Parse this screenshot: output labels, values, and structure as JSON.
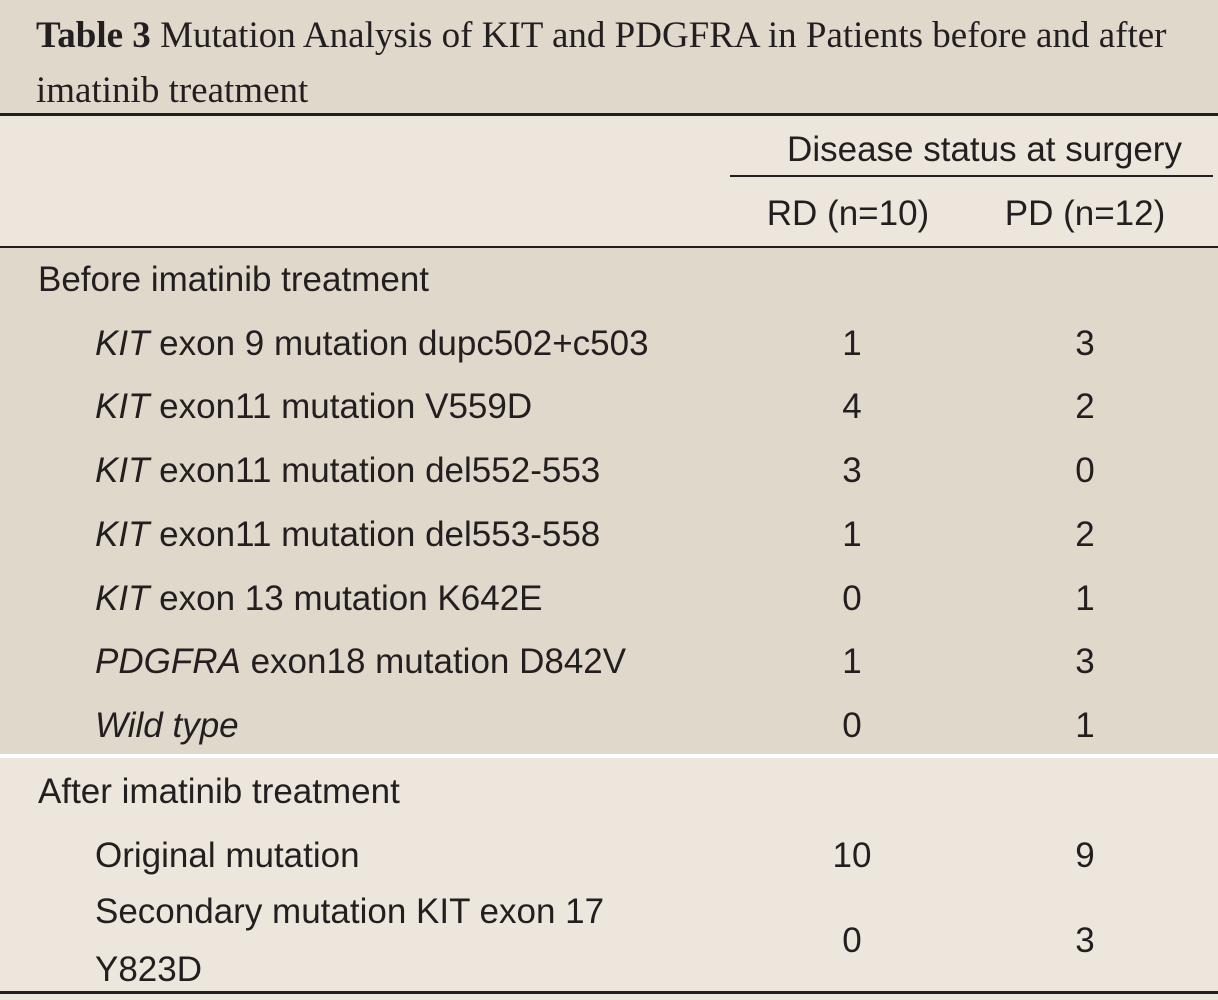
{
  "title": {
    "number": "Table 3",
    "text": "Mutation Analysis of KIT and PDGFRA in Patients before and after imatinib treatment"
  },
  "header": {
    "group": "Disease status at surgery",
    "col_rd": "RD (n=10)",
    "col_pd": "PD (n=12)"
  },
  "before": {
    "label": "Before imatinib treatment",
    "rows": [
      {
        "gene": "KIT",
        "rest": " exon 9 mutation dupc502+c503",
        "rd": "1",
        "pd": "3"
      },
      {
        "gene": "KIT",
        "rest": " exon11 mutation V559D",
        "rd": "4",
        "pd": "2"
      },
      {
        "gene": "KIT",
        "rest": " exon11 mutation del552-553",
        "rd": "3",
        "pd": "0"
      },
      {
        "gene": "KIT",
        "rest": " exon11 mutation del553-558",
        "rd": "1",
        "pd": "2"
      },
      {
        "gene": "KIT",
        "rest": " exon 13 mutation K642E",
        "rd": "0",
        "pd": "1"
      },
      {
        "gene": "PDGFRA",
        "rest": " exon18 mutation D842V",
        "rd": "1",
        "pd": "3"
      },
      {
        "gene": "Wild type",
        "rest": "",
        "rd": "0",
        "pd": "1"
      }
    ]
  },
  "after": {
    "label": "After imatinib treatment",
    "rows": [
      {
        "text": "Original mutation",
        "rd": "10",
        "pd": "9"
      },
      {
        "text": "Secondary mutation KIT exon 17 Y823D",
        "rd": "0",
        "pd": "3"
      }
    ]
  }
}
